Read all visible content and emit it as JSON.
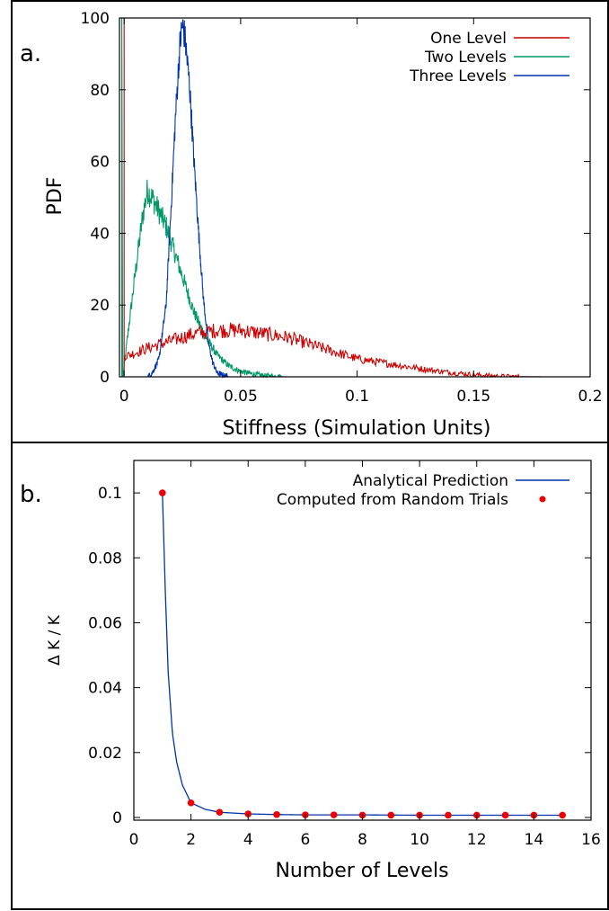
{
  "chart_data": [
    {
      "type": "line",
      "panel_label": "a.",
      "title": "",
      "xlabel": "Stiffness (Simulation Units)",
      "ylabel": "PDF",
      "xlim": [
        -0.002,
        0.2
      ],
      "ylim": [
        0,
        100
      ],
      "x_ticks": [
        "0",
        "0.05",
        "0.1",
        "0.15",
        "0.2"
      ],
      "y_ticks": [
        "0",
        "20",
        "40",
        "60",
        "80",
        "100"
      ],
      "grid": false,
      "legend_position": "top-right",
      "series": [
        {
          "name": "One Level",
          "color": "#cc0000",
          "x": [
            0.0,
            0.0,
            0.0,
            0.0,
            0.002,
            0.01,
            0.02,
            0.03,
            0.04,
            0.05,
            0.06,
            0.07,
            0.08,
            0.09,
            0.1,
            0.11,
            0.12,
            0.13,
            0.14,
            0.15,
            0.16,
            0.17,
            0.18
          ],
          "y": [
            0,
            100,
            100,
            6,
            6,
            8,
            10,
            12,
            13,
            13,
            12,
            11,
            9,
            7,
            5,
            4,
            3,
            2,
            1.2,
            0.6,
            0.2,
            0.05,
            0
          ]
        },
        {
          "name": "Two Levels",
          "color": "#009966",
          "x": [
            -0.001,
            -0.001,
            -0.0005,
            0.002,
            0.005,
            0.008,
            0.01,
            0.012,
            0.015,
            0.018,
            0.02,
            0.025,
            0.03,
            0.035,
            0.04,
            0.045,
            0.05,
            0.055,
            0.06,
            0.065,
            0.07
          ],
          "y": [
            0,
            100,
            0,
            14,
            30,
            45,
            52,
            50,
            46,
            42,
            38,
            28,
            18,
            11,
            6,
            3,
            1.5,
            0.8,
            0.3,
            0.1,
            0
          ]
        },
        {
          "name": "Three Levels",
          "color": "#0033aa",
          "x": [
            0.01,
            0.012,
            0.015,
            0.018,
            0.02,
            0.022,
            0.024,
            0.025,
            0.026,
            0.028,
            0.03,
            0.032,
            0.034,
            0.036,
            0.038,
            0.04,
            0.045
          ],
          "y": [
            0,
            1,
            5,
            20,
            45,
            72,
            93,
            98,
            95,
            82,
            60,
            40,
            22,
            10,
            4,
            1,
            0
          ]
        }
      ]
    },
    {
      "type": "line",
      "panel_label": "b.",
      "title": "",
      "xlabel": "Number of Levels",
      "ylabel": "Δ K / K",
      "xlim": [
        0,
        16
      ],
      "ylim": [
        0,
        0.11
      ],
      "x_ticks": [
        "0",
        "2",
        "4",
        "6",
        "8",
        "10",
        "12",
        "14",
        "16"
      ],
      "y_ticks": [
        "0",
        "0.02",
        "0.04",
        "0.06",
        "0.08",
        "0.1"
      ],
      "grid": false,
      "legend_position": "top-right",
      "series": [
        {
          "name": "Analytical Prediction",
          "color": "#0033aa",
          "x": [
            1.0,
            1.1,
            1.2,
            1.35,
            1.5,
            1.7,
            2.0,
            2.5,
            3.0,
            4.0,
            5.0,
            6.0,
            8.0,
            10.0,
            12.0,
            15.0
          ],
          "y": [
            0.1,
            0.07,
            0.045,
            0.026,
            0.017,
            0.01,
            0.0045,
            0.0025,
            0.0016,
            0.0011,
            0.0009,
            0.0008,
            0.0008,
            0.0007,
            0.0007,
            0.0007
          ]
        },
        {
          "name": "Computed from Random Trials",
          "color": "#ee0000",
          "x": [
            1,
            2,
            3,
            4,
            5,
            6,
            7,
            8,
            9,
            10,
            11,
            12,
            13,
            14,
            15
          ],
          "y": [
            0.1,
            0.0045,
            0.0016,
            0.0011,
            0.0009,
            0.0008,
            0.0008,
            0.0007,
            0.0007,
            0.0007,
            0.0007,
            0.0007,
            0.0007,
            0.0007,
            0.0007
          ]
        }
      ]
    }
  ]
}
